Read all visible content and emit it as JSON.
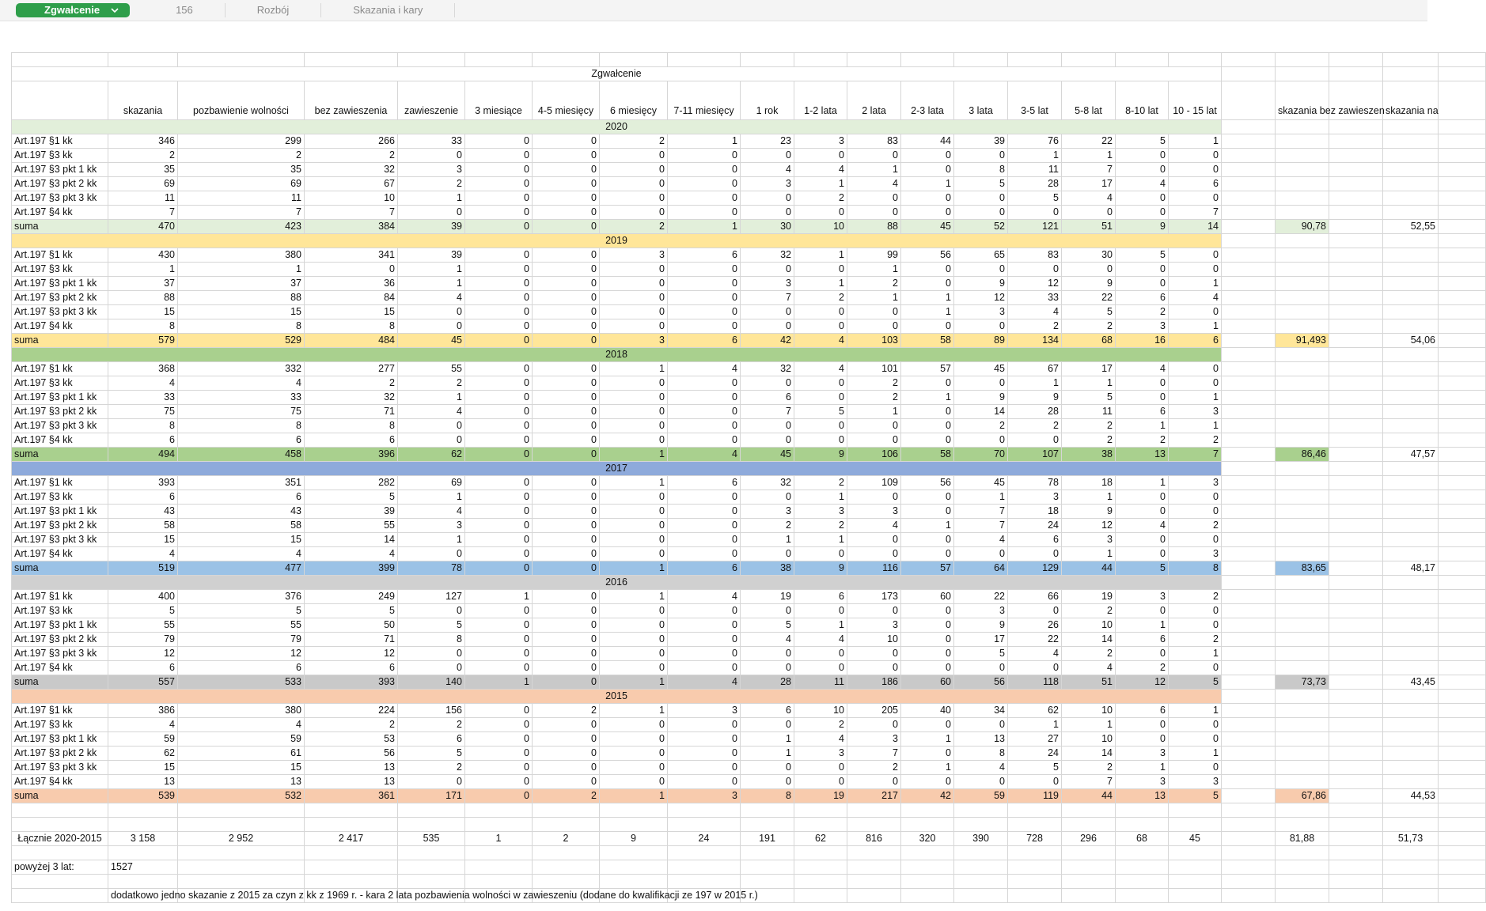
{
  "tabs": [
    "Zgwałcenie",
    "156",
    "Rozbój",
    "Skazania i kary"
  ],
  "table": {
    "title": "Zgwałcenie",
    "headers": [
      "skazania",
      "pozbawienie wolności",
      "bez zawieszenia",
      "zawieszenie",
      "3 miesiące",
      "4-5 miesięcy",
      "6 miesięcy",
      "7-11 miesięcy",
      "1 rok",
      "1-2 lata",
      "2 lata",
      "2-3 lata",
      "3 lata",
      "3-5 lat",
      "5-8 lat",
      "8-10 lat",
      "10 - 15 lat"
    ],
    "extra_headers": [
      "skazania bez zawieszen",
      "skazania na"
    ],
    "years": [
      {
        "year": "2020",
        "rows": [
          {
            "label": "Art.197 §1 kk",
            "values": [
              346,
              299,
              266,
              33,
              0,
              0,
              2,
              1,
              23,
              3,
              83,
              44,
              39,
              76,
              22,
              5,
              1
            ]
          },
          {
            "label": "Art.197 §3 kk",
            "values": [
              2,
              2,
              2,
              0,
              0,
              0,
              0,
              0,
              0,
              0,
              0,
              0,
              0,
              1,
              1,
              0,
              0
            ]
          },
          {
            "label": "Art.197 §3 pkt 1 kk",
            "values": [
              35,
              35,
              32,
              3,
              0,
              0,
              0,
              0,
              4,
              4,
              1,
              0,
              8,
              11,
              7,
              0,
              0
            ]
          },
          {
            "label": "Art.197 §3 pkt 2 kk",
            "values": [
              69,
              69,
              67,
              2,
              0,
              0,
              0,
              0,
              3,
              1,
              4,
              1,
              5,
              28,
              17,
              4,
              6
            ]
          },
          {
            "label": "Art.197 §3 pkt 3 kk",
            "values": [
              11,
              11,
              10,
              1,
              0,
              0,
              0,
              0,
              0,
              2,
              0,
              0,
              0,
              5,
              4,
              0,
              0
            ]
          },
          {
            "label": "Art.197 §4 kk",
            "values": [
              7,
              7,
              7,
              0,
              0,
              0,
              0,
              0,
              0,
              0,
              0,
              0,
              0,
              0,
              0,
              0,
              7
            ]
          }
        ],
        "sum": {
          "label": "suma",
          "values": [
            470,
            423,
            384,
            39,
            0,
            0,
            2,
            1,
            30,
            10,
            88,
            45,
            52,
            121,
            51,
            9,
            14
          ],
          "extra": [
            "90,78",
            "52,55"
          ]
        }
      },
      {
        "year": "2019",
        "rows": [
          {
            "label": "Art.197 §1 kk",
            "values": [
              430,
              380,
              341,
              39,
              0,
              0,
              3,
              6,
              32,
              1,
              99,
              56,
              65,
              83,
              30,
              5,
              0
            ]
          },
          {
            "label": "Art.197 §3 kk",
            "values": [
              1,
              1,
              0,
              1,
              0,
              0,
              0,
              0,
              0,
              0,
              1,
              0,
              0,
              0,
              0,
              0,
              0
            ]
          },
          {
            "label": "Art.197 §3 pkt 1 kk",
            "values": [
              37,
              37,
              36,
              1,
              0,
              0,
              0,
              0,
              3,
              1,
              2,
              0,
              9,
              12,
              9,
              0,
              1
            ]
          },
          {
            "label": "Art.197 §3 pkt 2 kk",
            "values": [
              88,
              88,
              84,
              4,
              0,
              0,
              0,
              0,
              7,
              2,
              1,
              1,
              12,
              33,
              22,
              6,
              4
            ]
          },
          {
            "label": "Art.197 §3 pkt 3 kk",
            "values": [
              15,
              15,
              15,
              0,
              0,
              0,
              0,
              0,
              0,
              0,
              0,
              1,
              3,
              4,
              5,
              2,
              0
            ]
          },
          {
            "label": "Art.197 §4 kk",
            "values": [
              8,
              8,
              8,
              0,
              0,
              0,
              0,
              0,
              0,
              0,
              0,
              0,
              0,
              2,
              2,
              3,
              1
            ]
          }
        ],
        "sum": {
          "label": "suma",
          "values": [
            579,
            529,
            484,
            45,
            0,
            0,
            3,
            6,
            42,
            4,
            103,
            58,
            89,
            134,
            68,
            16,
            6
          ],
          "extra": [
            "91,493",
            "54,06"
          ]
        }
      },
      {
        "year": "2018",
        "rows": [
          {
            "label": "Art.197 §1 kk",
            "values": [
              368,
              332,
              277,
              55,
              0,
              0,
              1,
              4,
              32,
              4,
              101,
              57,
              45,
              67,
              17,
              4,
              0
            ]
          },
          {
            "label": "Art.197 §3 kk",
            "values": [
              4,
              4,
              2,
              2,
              0,
              0,
              0,
              0,
              0,
              0,
              2,
              0,
              0,
              1,
              1,
              0,
              0
            ]
          },
          {
            "label": "Art.197 §3 pkt 1 kk",
            "values": [
              33,
              33,
              32,
              1,
              0,
              0,
              0,
              0,
              6,
              0,
              2,
              1,
              9,
              9,
              5,
              0,
              1
            ]
          },
          {
            "label": "Art.197 §3 pkt 2 kk",
            "values": [
              75,
              75,
              71,
              4,
              0,
              0,
              0,
              0,
              7,
              5,
              1,
              0,
              14,
              28,
              11,
              6,
              3
            ]
          },
          {
            "label": "Art.197 §3 pkt 3 kk",
            "values": [
              8,
              8,
              8,
              0,
              0,
              0,
              0,
              0,
              0,
              0,
              0,
              0,
              2,
              2,
              2,
              1,
              1
            ]
          },
          {
            "label": "Art.197 §4 kk",
            "values": [
              6,
              6,
              6,
              0,
              0,
              0,
              0,
              0,
              0,
              0,
              0,
              0,
              0,
              0,
              2,
              2,
              2
            ]
          }
        ],
        "sum": {
          "label": "suma",
          "values": [
            494,
            458,
            396,
            62,
            0,
            0,
            1,
            4,
            45,
            9,
            106,
            58,
            70,
            107,
            38,
            13,
            7
          ],
          "extra": [
            "86,46",
            "47,57"
          ]
        }
      },
      {
        "year": "2017",
        "rows": [
          {
            "label": "Art.197 §1 kk",
            "values": [
              393,
              351,
              282,
              69,
              0,
              0,
              1,
              6,
              32,
              2,
              109,
              56,
              45,
              78,
              18,
              1,
              3
            ]
          },
          {
            "label": "Art.197 §3 kk",
            "values": [
              6,
              6,
              5,
              1,
              0,
              0,
              0,
              0,
              0,
              1,
              0,
              0,
              1,
              3,
              1,
              0,
              0
            ]
          },
          {
            "label": "Art.197 §3 pkt 1 kk",
            "values": [
              43,
              43,
              39,
              4,
              0,
              0,
              0,
              0,
              3,
              3,
              3,
              0,
              7,
              18,
              9,
              0,
              0
            ]
          },
          {
            "label": "Art.197 §3 pkt 2 kk",
            "values": [
              58,
              58,
              55,
              3,
              0,
              0,
              0,
              0,
              2,
              2,
              4,
              1,
              7,
              24,
              12,
              4,
              2
            ]
          },
          {
            "label": "Art.197 §3 pkt 3 kk",
            "values": [
              15,
              15,
              14,
              1,
              0,
              0,
              0,
              0,
              1,
              1,
              0,
              0,
              4,
              6,
              3,
              0,
              0
            ]
          },
          {
            "label": "Art.197 §4 kk",
            "values": [
              4,
              4,
              4,
              0,
              0,
              0,
              0,
              0,
              0,
              0,
              0,
              0,
              0,
              0,
              1,
              0,
              3
            ]
          }
        ],
        "sum": {
          "label": "suma",
          "values": [
            519,
            477,
            399,
            78,
            0,
            0,
            1,
            6,
            38,
            9,
            116,
            57,
            64,
            129,
            44,
            5,
            8
          ],
          "extra": [
            "83,65",
            "48,17"
          ]
        }
      },
      {
        "year": "2016",
        "rows": [
          {
            "label": "Art.197 §1 kk",
            "values": [
              400,
              376,
              249,
              127,
              1,
              0,
              1,
              4,
              19,
              6,
              173,
              60,
              22,
              66,
              19,
              3,
              2
            ]
          },
          {
            "label": "Art.197 §3 kk",
            "values": [
              5,
              5,
              5,
              0,
              0,
              0,
              0,
              0,
              0,
              0,
              0,
              0,
              3,
              0,
              2,
              0,
              0
            ]
          },
          {
            "label": "Art.197 §3 pkt 1 kk",
            "values": [
              55,
              55,
              50,
              5,
              0,
              0,
              0,
              0,
              5,
              1,
              3,
              0,
              9,
              26,
              10,
              1,
              0
            ]
          },
          {
            "label": "Art.197 §3 pkt 2 kk",
            "values": [
              79,
              79,
              71,
              8,
              0,
              0,
              0,
              0,
              4,
              4,
              10,
              0,
              17,
              22,
              14,
              6,
              2
            ]
          },
          {
            "label": "Art.197 §3 pkt 3 kk",
            "values": [
              12,
              12,
              12,
              0,
              0,
              0,
              0,
              0,
              0,
              0,
              0,
              0,
              5,
              4,
              2,
              0,
              1
            ]
          },
          {
            "label": "Art.197 §4 kk",
            "values": [
              6,
              6,
              6,
              0,
              0,
              0,
              0,
              0,
              0,
              0,
              0,
              0,
              0,
              0,
              4,
              2,
              0
            ]
          }
        ],
        "sum": {
          "label": "suma",
          "values": [
            557,
            533,
            393,
            140,
            1,
            0,
            1,
            4,
            28,
            11,
            186,
            60,
            56,
            118,
            51,
            12,
            5
          ],
          "extra": [
            "73,73",
            "43,45"
          ]
        }
      },
      {
        "year": "2015",
        "rows": [
          {
            "label": "Art.197 §1 kk",
            "values": [
              386,
              380,
              224,
              156,
              0,
              2,
              1,
              3,
              6,
              10,
              205,
              40,
              34,
              62,
              10,
              6,
              1
            ]
          },
          {
            "label": "Art.197 §3 kk",
            "values": [
              4,
              4,
              2,
              2,
              0,
              0,
              0,
              0,
              0,
              2,
              0,
              0,
              0,
              1,
              1,
              0,
              0
            ]
          },
          {
            "label": "Art.197 §3 pkt 1 kk",
            "values": [
              59,
              59,
              53,
              6,
              0,
              0,
              0,
              0,
              1,
              4,
              3,
              1,
              13,
              27,
              10,
              0,
              0
            ]
          },
          {
            "label": "Art.197 §3 pkt 2 kk",
            "values": [
              62,
              61,
              56,
              5,
              0,
              0,
              0,
              0,
              1,
              3,
              7,
              0,
              8,
              24,
              14,
              3,
              1
            ]
          },
          {
            "label": "Art.197 §3 pkt 3 kk",
            "values": [
              15,
              15,
              13,
              2,
              0,
              0,
              0,
              0,
              0,
              0,
              2,
              1,
              4,
              5,
              2,
              1,
              0
            ]
          },
          {
            "label": "Art.197 §4 kk",
            "values": [
              13,
              13,
              13,
              0,
              0,
              0,
              0,
              0,
              0,
              0,
              0,
              0,
              0,
              0,
              7,
              3,
              3
            ]
          }
        ],
        "sum": {
          "label": "suma",
          "values": [
            539,
            532,
            361,
            171,
            0,
            2,
            1,
            3,
            8,
            19,
            217,
            42,
            59,
            119,
            44,
            13,
            5
          ],
          "extra": [
            "67,86",
            "44,53"
          ]
        }
      }
    ],
    "total": {
      "label": "Łącznie 2020-2015",
      "values": [
        "3 158",
        "2 952",
        "2 417",
        535,
        1,
        2,
        9,
        24,
        191,
        62,
        816,
        320,
        390,
        728,
        296,
        68,
        45
      ],
      "extra": [
        "81,88",
        "51,73"
      ]
    },
    "above3": {
      "label": "powyżej 3 lat:",
      "value": 1527
    },
    "note": "dodatkowo jedno skazanie z 2015 za czyn z kk z 1969 r. - kara 2 lata pozbawienia wolności w zawieszeniu (dodane do kwalifikacji ze 197 w 2015 r.)"
  }
}
